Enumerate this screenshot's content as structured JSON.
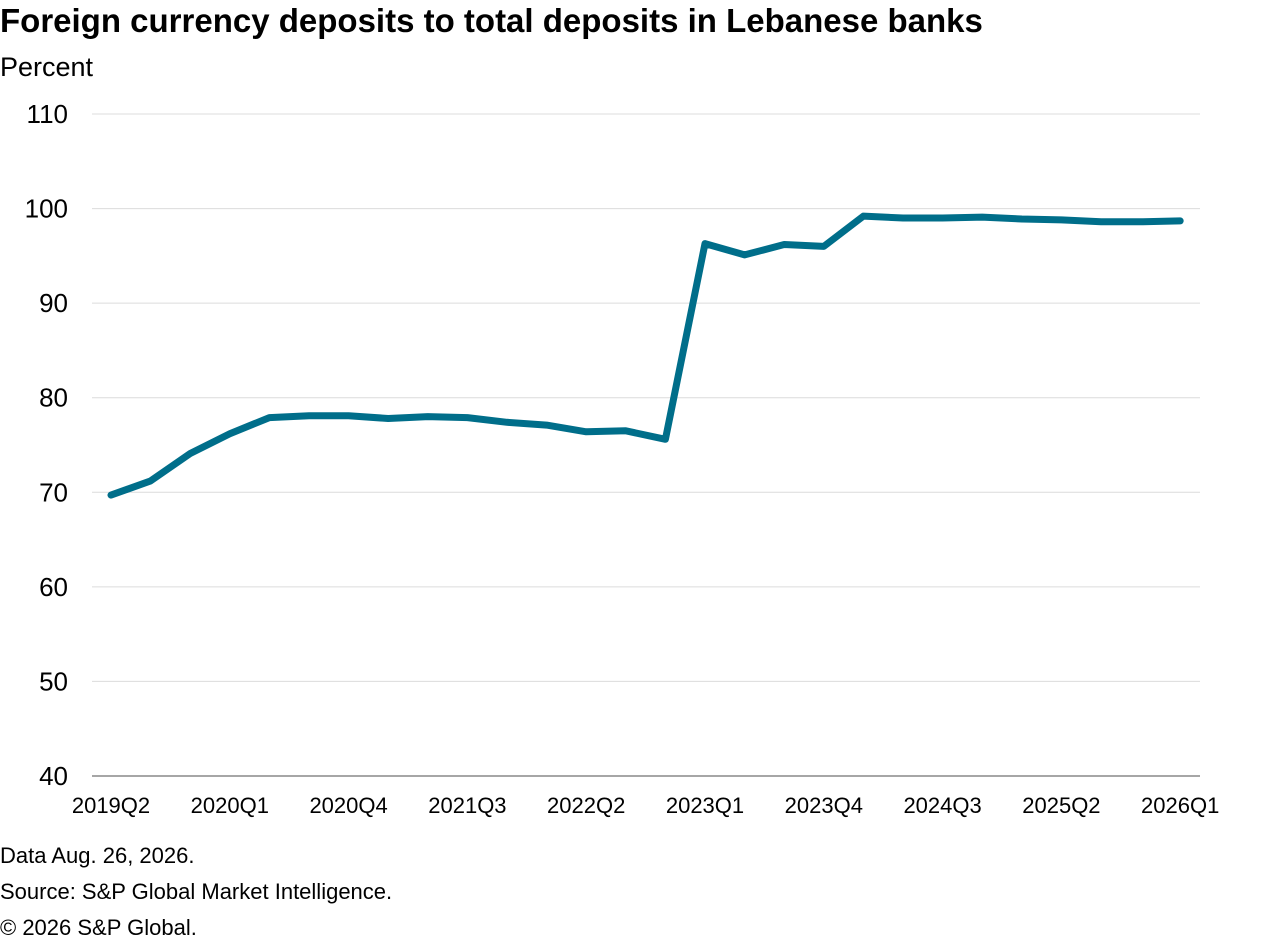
{
  "chart_data": {
    "type": "line",
    "title": "Foreign currency deposits to total deposits in Lebanese banks",
    "ylabel": "Percent",
    "ylim": [
      40,
      110
    ],
    "yticks": [
      40,
      50,
      60,
      70,
      80,
      90,
      100,
      110
    ],
    "grid": true,
    "x_tick_labels": [
      "2019Q2",
      "2020Q1",
      "2020Q4",
      "2021Q3",
      "2022Q2",
      "2023Q1",
      "2023Q4",
      "2024Q3",
      "2025Q2",
      "2026Q1"
    ],
    "x": [
      "2019Q2",
      "2019Q3",
      "2019Q4",
      "2020Q1",
      "2020Q2",
      "2020Q3",
      "2020Q4",
      "2021Q1",
      "2021Q2",
      "2021Q3",
      "2021Q4",
      "2022Q1",
      "2022Q2",
      "2022Q3",
      "2022Q4",
      "2023Q1",
      "2023Q2",
      "2023Q3",
      "2023Q4",
      "2024Q1",
      "2024Q2",
      "2024Q3",
      "2024Q4",
      "2025Q1",
      "2025Q2",
      "2025Q3",
      "2025Q4",
      "2026Q1"
    ],
    "series": [
      {
        "color": "#006e8a",
        "values": [
          69.7,
          71.2,
          74.1,
          76.2,
          77.9,
          78.1,
          78.1,
          77.8,
          78.0,
          77.9,
          77.4,
          77.1,
          76.4,
          76.5,
          75.6,
          96.3,
          95.1,
          96.2,
          96.0,
          99.2,
          99.0,
          99.0,
          99.1,
          98.9,
          98.8,
          98.6,
          98.6,
          98.7
        ]
      }
    ]
  },
  "footer": {
    "date_note": "Data Aug. 26, 2026.",
    "source": "Source: S&P Global Market Intelligence.",
    "copyright": "© 2026 S&P Global."
  }
}
